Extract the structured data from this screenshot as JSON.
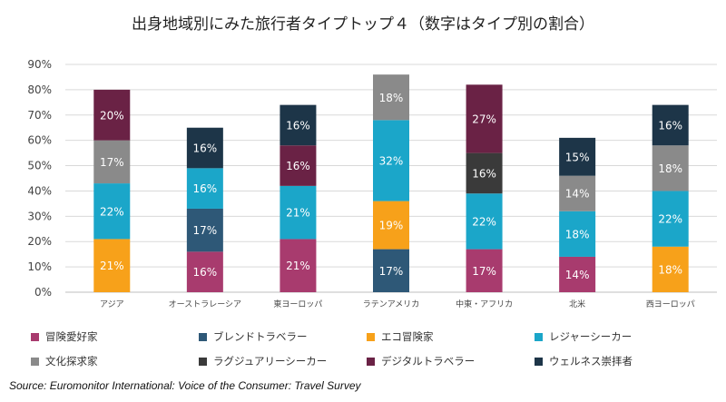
{
  "chart_data": {
    "type": "bar",
    "stacked": true,
    "title": "出身地域別にみた旅行者タイプトップ４（数字はタイプ別の割合）",
    "source": "Source: Euromonitor International: Voice of the Consumer: Travel Survey",
    "ylim": [
      0,
      90
    ],
    "yticks": [
      "0%",
      "10%",
      "20%",
      "30%",
      "40%",
      "50%",
      "60%",
      "70%",
      "80%",
      "90%"
    ],
    "grid": true,
    "legend_position": "bottom",
    "categories": [
      "アジア",
      "オーストラレーシア",
      "東ヨーロッパ",
      "ラテンアメリカ",
      "中東・アフリカ",
      "北米",
      "西ヨーロッパ"
    ],
    "series": [
      {
        "name": "冒険愛好家",
        "color": "#a83b6e"
      },
      {
        "name": "ブレンドトラベラー",
        "color": "#2e5877"
      },
      {
        "name": "エコ冒険家",
        "color": "#f7a11a"
      },
      {
        "name": "レジャーシーカー",
        "color": "#1ba6c9"
      },
      {
        "name": "文化探求家",
        "color": "#8a8a8a"
      },
      {
        "name": "ラグジュアリーシーカー",
        "color": "#3a3a3a"
      },
      {
        "name": "デジタルトラベラー",
        "color": "#6a2245"
      },
      {
        "name": "ウェルネス崇拝者",
        "color": "#1d3548"
      }
    ],
    "stacks": [
      [
        {
          "series": "エコ冒険家",
          "value": 21,
          "label": "21%"
        },
        {
          "series": "レジャーシーカー",
          "value": 22,
          "label": "22%"
        },
        {
          "series": "文化探求家",
          "value": 17,
          "label": "17%"
        },
        {
          "series": "デジタルトラベラー",
          "value": 20,
          "label": "20%"
        }
      ],
      [
        {
          "series": "冒険愛好家",
          "value": 16,
          "label": "16%"
        },
        {
          "series": "ブレンドトラベラー",
          "value": 17,
          "label": "17%"
        },
        {
          "series": "レジャーシーカー",
          "value": 16,
          "label": "16%"
        },
        {
          "series": "ウェルネス崇拝者",
          "value": 16,
          "label": "16%"
        }
      ],
      [
        {
          "series": "冒険愛好家",
          "value": 21,
          "label": "21%"
        },
        {
          "series": "レジャーシーカー",
          "value": 21,
          "label": "21%"
        },
        {
          "series": "デジタルトラベラー",
          "value": 16,
          "label": "16%"
        },
        {
          "series": "ウェルネス崇拝者",
          "value": 16,
          "label": "16%"
        }
      ],
      [
        {
          "series": "ブレンドトラベラー",
          "value": 17,
          "label": "17%"
        },
        {
          "series": "エコ冒険家",
          "value": 19,
          "label": "19%"
        },
        {
          "series": "レジャーシーカー",
          "value": 32,
          "label": "32%"
        },
        {
          "series": "文化探求家",
          "value": 18,
          "label": "18%"
        }
      ],
      [
        {
          "series": "冒険愛好家",
          "value": 17,
          "label": "17%"
        },
        {
          "series": "レジャーシーカー",
          "value": 22,
          "label": "22%"
        },
        {
          "series": "ラグジュアリーシーカー",
          "value": 16,
          "label": "16%"
        },
        {
          "series": "デジタルトラベラー",
          "value": 27,
          "label": "27%"
        }
      ],
      [
        {
          "series": "冒険愛好家",
          "value": 14,
          "label": "14%"
        },
        {
          "series": "レジャーシーカー",
          "value": 18,
          "label": "18%"
        },
        {
          "series": "文化探求家",
          "value": 14,
          "label": "14%"
        },
        {
          "series": "ウェルネス崇拝者",
          "value": 15,
          "label": "15%"
        }
      ],
      [
        {
          "series": "エコ冒険家",
          "value": 18,
          "label": "18%"
        },
        {
          "series": "レジャーシーカー",
          "value": 22,
          "label": "22%"
        },
        {
          "series": "文化探求家",
          "value": 18,
          "label": "18%"
        },
        {
          "series": "ウェルネス崇拝者",
          "value": 16,
          "label": "16%"
        }
      ]
    ]
  }
}
